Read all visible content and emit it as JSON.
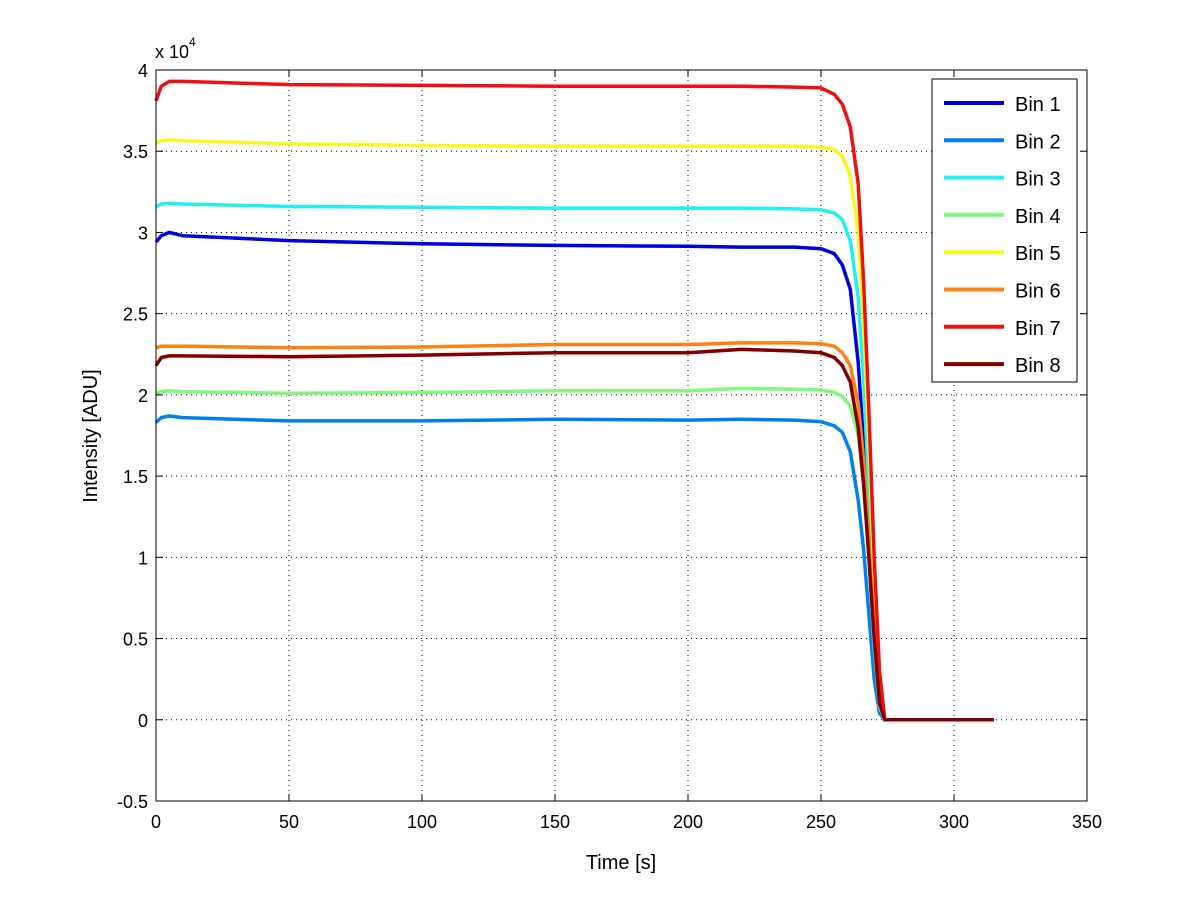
{
  "chart_data": {
    "type": "line",
    "title": "",
    "xlabel": "Time [s]",
    "ylabel": "Intensity [ADU]",
    "y_multiplier_label": "x 10",
    "y_multiplier_exponent": "4",
    "xlim": [
      0,
      350
    ],
    "ylim": [
      -5000,
      40000
    ],
    "xticks": [
      0,
      50,
      100,
      150,
      200,
      250,
      300,
      350
    ],
    "xtick_labels": [
      "0",
      "50",
      "100",
      "150",
      "200",
      "250",
      "300",
      "350"
    ],
    "yticks": [
      -5000,
      0,
      5000,
      10000,
      15000,
      20000,
      25000,
      30000,
      35000,
      40000
    ],
    "ytick_labels": [
      "-0.5",
      "0",
      "0.5",
      "1",
      "1.5",
      "2",
      "2.5",
      "3",
      "3.5",
      "4"
    ],
    "grid": true,
    "legend_position": "top-right",
    "x": [
      0,
      2,
      5,
      10,
      50,
      100,
      150,
      200,
      220,
      240,
      250,
      255,
      258,
      261,
      264,
      266,
      268,
      270,
      272,
      274,
      280,
      300,
      315
    ],
    "series": [
      {
        "name": "Bin 1",
        "color": "#0000dd",
        "values": [
          29400,
          29800,
          30000,
          29800,
          29500,
          29300,
          29200,
          29150,
          29100,
          29100,
          29000,
          28700,
          28000,
          26500,
          22000,
          17000,
          11000,
          5000,
          1000,
          0,
          0,
          0,
          0
        ]
      },
      {
        "name": "Bin 2",
        "color": "#0080f0",
        "values": [
          18300,
          18600,
          18700,
          18600,
          18400,
          18400,
          18500,
          18450,
          18500,
          18450,
          18350,
          18100,
          17700,
          16500,
          13500,
          10500,
          6500,
          2500,
          400,
          0,
          0,
          0,
          0
        ]
      },
      {
        "name": "Bin 3",
        "color": "#20f0f0",
        "values": [
          31600,
          31750,
          31800,
          31750,
          31600,
          31550,
          31500,
          31500,
          31500,
          31450,
          31400,
          31200,
          30800,
          29500,
          26000,
          21000,
          14000,
          6500,
          1500,
          0,
          0,
          0,
          0
        ]
      },
      {
        "name": "Bin 4",
        "color": "#80f880",
        "values": [
          20100,
          20200,
          20250,
          20200,
          20100,
          20150,
          20250,
          20250,
          20400,
          20350,
          20300,
          20150,
          19900,
          19300,
          17500,
          14500,
          10000,
          4500,
          800,
          0,
          0,
          0,
          0
        ]
      },
      {
        "name": "Bin 5",
        "color": "#f8f820",
        "values": [
          35500,
          35650,
          35700,
          35650,
          35450,
          35350,
          35300,
          35300,
          35300,
          35300,
          35250,
          35100,
          34700,
          33500,
          30000,
          24500,
          17000,
          9000,
          2500,
          0,
          0,
          0,
          0
        ]
      },
      {
        "name": "Bin 6",
        "color": "#ff8010",
        "values": [
          22900,
          23000,
          23000,
          23000,
          22900,
          22950,
          23100,
          23100,
          23200,
          23200,
          23150,
          23000,
          22600,
          21800,
          19500,
          16000,
          11000,
          5500,
          1200,
          0,
          0,
          0,
          0
        ]
      },
      {
        "name": "Bin 7",
        "color": "#ee1010",
        "values": [
          38100,
          39000,
          39300,
          39300,
          39100,
          39050,
          39000,
          39000,
          39000,
          38950,
          38900,
          38500,
          37900,
          36500,
          33000,
          27000,
          19000,
          10000,
          3000,
          0,
          0,
          0,
          0
        ]
      },
      {
        "name": "Bin 8",
        "color": "#800000",
        "values": [
          21800,
          22300,
          22400,
          22400,
          22350,
          22450,
          22600,
          22600,
          22800,
          22700,
          22600,
          22300,
          21800,
          20800,
          18000,
          14500,
          10000,
          5000,
          1000,
          0,
          0,
          0,
          0
        ]
      }
    ]
  }
}
